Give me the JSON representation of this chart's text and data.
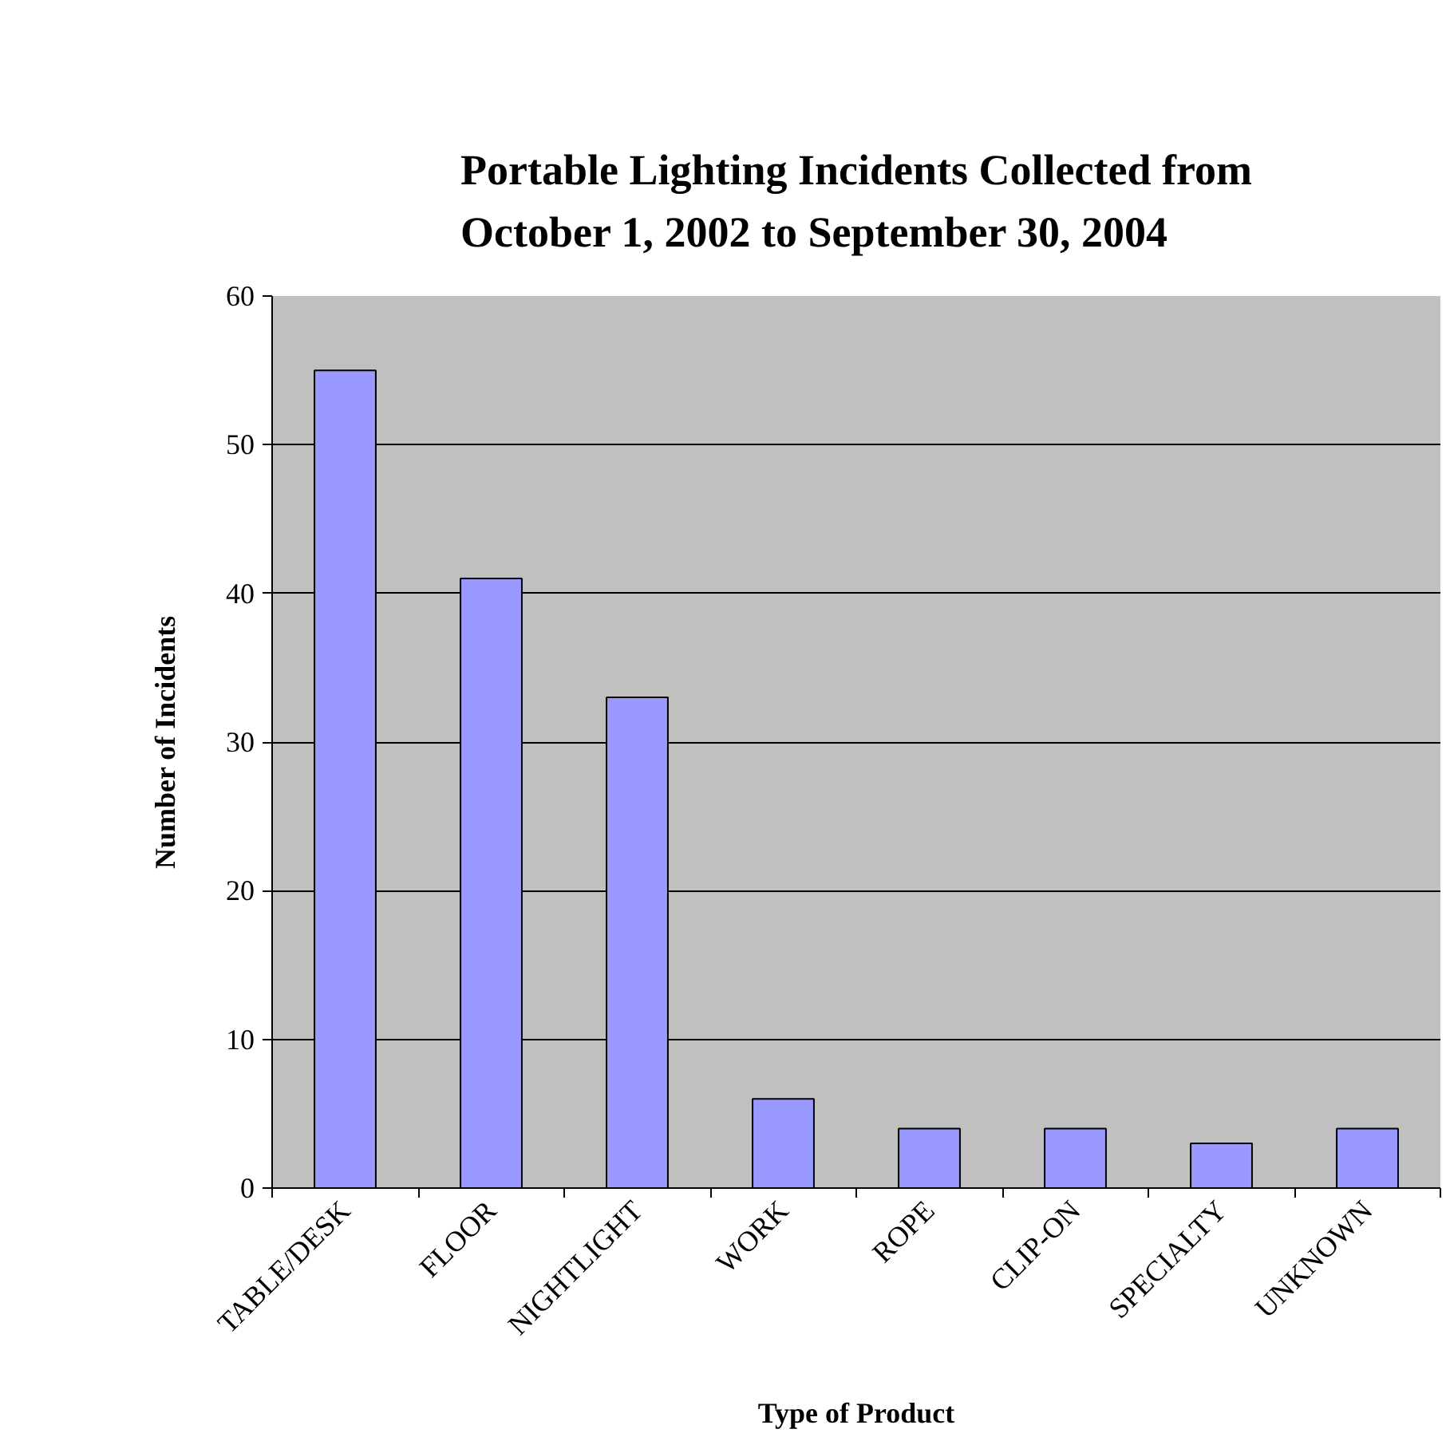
{
  "chart_data": {
    "type": "bar",
    "title": "Portable Lighting Incidents Collected from October 1, 2002 to September 30, 2004",
    "xlabel": "Type of Product",
    "ylabel": "Number of Incidents",
    "categories": [
      "TABLE/DESK",
      "FLOOR",
      "NIGHTLIGHT",
      "WORK",
      "ROPE",
      "CLIP-ON",
      "SPECIALTY",
      "UNKNOWN"
    ],
    "values": [
      55,
      41,
      33,
      6,
      4,
      4,
      3,
      4
    ],
    "color": "#9999ff",
    "ylim": [
      0,
      60
    ],
    "yticks": [
      0,
      10,
      20,
      30,
      40,
      50,
      60
    ],
    "grid": "y"
  }
}
